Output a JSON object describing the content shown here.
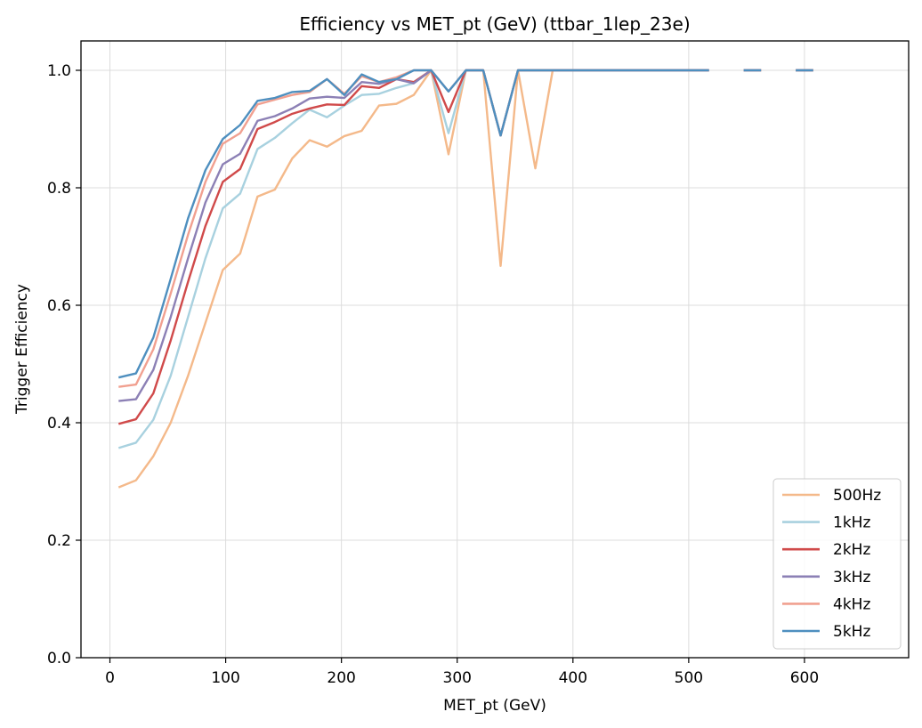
{
  "chart_data": {
    "type": "line",
    "title": "Efficiency vs MET_pt (GeV) (ttbar_1lep_23e)",
    "xlabel": "MET_pt (GeV)",
    "ylabel": "Trigger Efficiency",
    "xlim": [
      -25,
      690
    ],
    "ylim": [
      0,
      1.05
    ],
    "xticks": [
      0,
      100,
      200,
      300,
      400,
      500,
      600
    ],
    "yticks": [
      0.0,
      0.2,
      0.4,
      0.6,
      0.8,
      1.0
    ],
    "xtick_labels": [
      "0",
      "100",
      "200",
      "300",
      "400",
      "500",
      "600"
    ],
    "ytick_labels": [
      "0.0",
      "0.2",
      "0.4",
      "0.6",
      "0.8",
      "1.0"
    ],
    "grid": true,
    "legend_position": "bottom-right",
    "x": [
      7.5,
      22.5,
      37.5,
      52.5,
      67.5,
      82.5,
      97.5,
      112.5,
      127.5,
      142.5,
      157.5,
      172.5,
      187.5,
      202.5,
      217.5,
      232.5,
      247.5,
      262.5,
      277.5,
      292.5,
      307.5,
      322.5,
      337.5,
      352.5,
      367.5,
      382.5,
      397.5,
      412.5,
      427.5,
      442.5,
      457.5,
      472.5,
      487.5,
      502.5,
      517.5,
      532.5,
      547.5,
      562.5,
      577.5,
      592.5,
      607.5
    ],
    "series": [
      {
        "name": "500Hz",
        "color": "#f4b98a",
        "values": [
          0.29,
          0.302,
          0.343,
          0.4,
          0.48,
          0.57,
          0.66,
          0.688,
          0.785,
          0.797,
          0.85,
          0.881,
          0.87,
          0.888,
          0.897,
          0.94,
          0.943,
          0.958,
          1.0,
          0.857,
          1.0,
          1.0,
          0.667,
          1.0,
          0.833,
          1.0,
          1.0,
          1.0,
          1.0,
          1.0,
          1.0,
          1.0,
          1.0,
          1.0,
          1.0,
          null,
          1.0,
          1.0,
          null,
          1.0,
          1.0
        ]
      },
      {
        "name": "1kHz",
        "color": "#a8d1df",
        "values": [
          0.357,
          0.366,
          0.405,
          0.48,
          0.58,
          0.68,
          0.765,
          0.79,
          0.866,
          0.885,
          0.91,
          0.933,
          0.92,
          0.94,
          0.958,
          0.96,
          0.97,
          0.978,
          1.0,
          0.893,
          1.0,
          1.0,
          0.889,
          1.0,
          1.0,
          1.0,
          1.0,
          1.0,
          1.0,
          1.0,
          1.0,
          1.0,
          1.0,
          1.0,
          1.0,
          null,
          1.0,
          1.0,
          null,
          1.0,
          1.0
        ]
      },
      {
        "name": "2kHz",
        "color": "#d04a4a",
        "values": [
          0.398,
          0.406,
          0.45,
          0.54,
          0.64,
          0.735,
          0.81,
          0.832,
          0.9,
          0.912,
          0.926,
          0.935,
          0.942,
          0.941,
          0.973,
          0.97,
          0.985,
          0.98,
          1.0,
          0.929,
          1.0,
          1.0,
          0.889,
          1.0,
          1.0,
          1.0,
          1.0,
          1.0,
          1.0,
          1.0,
          1.0,
          1.0,
          1.0,
          1.0,
          1.0,
          null,
          1.0,
          1.0,
          null,
          1.0,
          1.0
        ]
      },
      {
        "name": "3kHz",
        "color": "#8c80b5",
        "values": [
          0.437,
          0.44,
          0.49,
          0.58,
          0.68,
          0.775,
          0.84,
          0.858,
          0.914,
          0.922,
          0.935,
          0.952,
          0.955,
          0.953,
          0.98,
          0.977,
          0.985,
          0.978,
          1.0,
          0.964,
          1.0,
          1.0,
          0.889,
          1.0,
          1.0,
          1.0,
          1.0,
          1.0,
          1.0,
          1.0,
          1.0,
          1.0,
          1.0,
          1.0,
          1.0,
          null,
          1.0,
          1.0,
          null,
          1.0,
          1.0
        ]
      },
      {
        "name": "4kHz",
        "color": "#f1a090",
        "values": [
          0.461,
          0.465,
          0.525,
          0.62,
          0.72,
          0.81,
          0.875,
          0.893,
          0.942,
          0.95,
          0.958,
          0.963,
          0.985,
          0.96,
          0.99,
          0.98,
          0.988,
          1.0,
          1.0,
          0.964,
          1.0,
          1.0,
          0.889,
          1.0,
          1.0,
          1.0,
          1.0,
          1.0,
          1.0,
          1.0,
          1.0,
          1.0,
          1.0,
          1.0,
          1.0,
          null,
          1.0,
          1.0,
          null,
          1.0,
          1.0
        ]
      },
      {
        "name": "5kHz",
        "color": "#4e8fbf",
        "values": [
          0.477,
          0.484,
          0.545,
          0.645,
          0.748,
          0.83,
          0.883,
          0.907,
          0.948,
          0.953,
          0.963,
          0.965,
          0.985,
          0.958,
          0.993,
          0.98,
          0.985,
          1.0,
          1.0,
          0.964,
          1.0,
          1.0,
          0.889,
          1.0,
          1.0,
          1.0,
          1.0,
          1.0,
          1.0,
          1.0,
          1.0,
          1.0,
          1.0,
          1.0,
          1.0,
          null,
          1.0,
          1.0,
          null,
          1.0,
          1.0
        ]
      }
    ]
  }
}
